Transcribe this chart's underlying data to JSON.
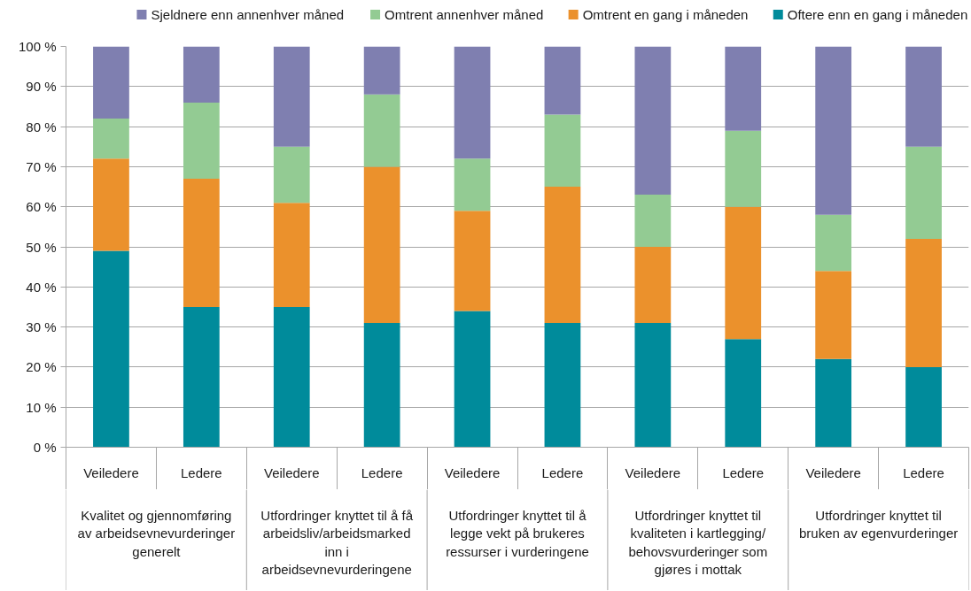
{
  "chart_data": {
    "type": "bar",
    "stacked": true,
    "categories": [
      "Veiledere",
      "Ledere",
      "Veiledere",
      "Ledere",
      "Veiledere",
      "Ledere",
      "Veiledere",
      "Ledere",
      "Veiledere",
      "Ledere"
    ],
    "series": [
      {
        "name": "Oftere enn en gang i måneden",
        "color": "#008b9b",
        "values": [
          49,
          35,
          35,
          31,
          34,
          31,
          31,
          27,
          22,
          20
        ]
      },
      {
        "name": "Omtrent en gang i måneden",
        "color": "#eb912c",
        "values": [
          23,
          32,
          26,
          39,
          25,
          34,
          19,
          33,
          22,
          32
        ]
      },
      {
        "name": "Omtrent annenhver måned",
        "color": "#93cb93",
        "values": [
          10,
          19,
          14,
          18,
          13,
          18,
          13,
          19,
          14,
          23
        ]
      },
      {
        "name": "Sjeldnere enn annenhver måned",
        "color": "#7f7fb0",
        "values": [
          18,
          14,
          25,
          12,
          28,
          17,
          37,
          21,
          42,
          25
        ]
      }
    ],
    "ylim": [
      0,
      100
    ],
    "yticks": [
      {
        "value": 0,
        "label": "0 %"
      },
      {
        "value": 10,
        "label": "10 %"
      },
      {
        "value": 20,
        "label": "20 %"
      },
      {
        "value": 30,
        "label": "30 %"
      },
      {
        "value": 40,
        "label": "40 %"
      },
      {
        "value": 50,
        "label": "50 %"
      },
      {
        "value": 60,
        "label": "60 %"
      },
      {
        "value": 70,
        "label": "70 %"
      },
      {
        "value": 80,
        "label": "80 %"
      },
      {
        "value": 90,
        "label": "90 %"
      },
      {
        "value": 100,
        "label": "100 %"
      }
    ],
    "grid": "y",
    "legend": "top",
    "annotations": [
      "Kvalitet og gjennomføring av arbeidsevnevurderinger generelt",
      "Utfordringer knyttet til å få arbeidsliv/arbeidsmarked inn i arbeidsevnevurderingene",
      "Utfordringer knyttet til å legge vekt på brukeres ressurser i vurderingene",
      "Utfordringer knyttet til kvaliteten i kartlegging/ behovsvurderinger som gjøres i mottak",
      "Utfordringer knyttet til bruken av egenvurderinger"
    ]
  }
}
